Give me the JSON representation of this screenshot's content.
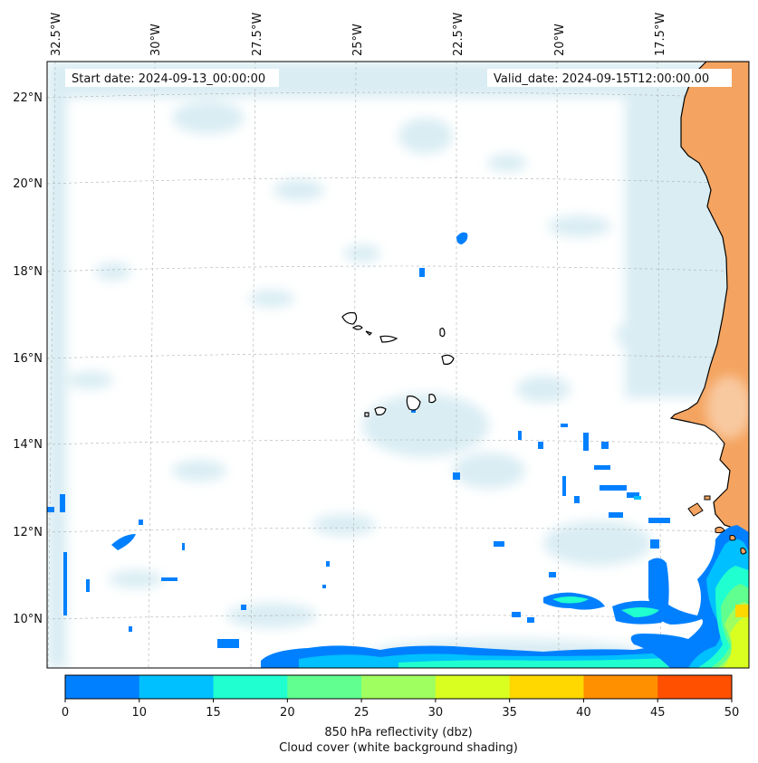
{
  "map": {
    "start_label": "Start date: 2024-09-13_00:00:00",
    "valid_label": "Valid_date: 2024-09-15T12:00:00.00",
    "lon_labels": [
      "32.5°W",
      "30°W",
      "27.5°W",
      "25°W",
      "22.5°W",
      "20°W",
      "17.5°W"
    ],
    "lat_labels": [
      "22°N",
      "20°N",
      "18°N",
      "16°N",
      "14°N",
      "12°N",
      "10°N"
    ],
    "land_color": "#f4a460",
    "coast_color": "#000000",
    "cloud_color": "#add8e6"
  },
  "colorbar": {
    "ticks": [
      "0",
      "10",
      "15",
      "20",
      "25",
      "30",
      "35",
      "40",
      "45",
      "50"
    ],
    "colors": [
      "#0080ff",
      "#00c0ff",
      "#20ffd0",
      "#60ff90",
      "#a0ff60",
      "#d8ff20",
      "#ffd800",
      "#ff9000",
      "#ff5000"
    ],
    "label_line1": "850 hPa reflectivity (dbz)",
    "label_line2": "Cloud cover (white background shading)"
  }
}
